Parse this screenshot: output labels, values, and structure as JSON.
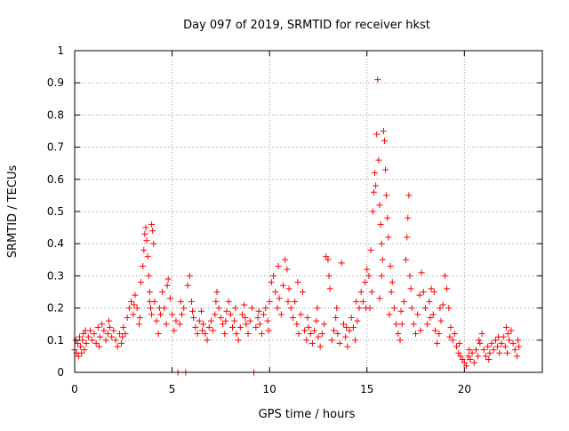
{
  "chart_data": {
    "type": "scatter",
    "title": "Day 097 of 2019, SRMTID for receiver hkst",
    "xlabel": "GPS time / hours",
    "ylabel": "SRMTID / TECUs",
    "xlim": [
      0,
      24
    ],
    "ylim": [
      0,
      1
    ],
    "x_ticks": [
      0,
      5,
      10,
      15,
      20
    ],
    "y_ticks": [
      0,
      0.1,
      0.2,
      0.3,
      0.4,
      0.5,
      0.6,
      0.7,
      0.8,
      0.9,
      1
    ],
    "x_tick_labels": [
      "0",
      "5",
      "10",
      "15",
      "20"
    ],
    "y_tick_labels": [
      "0",
      "0.1",
      "0.2",
      "0.3",
      "0.4",
      "0.5",
      "0.6",
      "0.7",
      "0.8",
      "0.9",
      "1"
    ],
    "grid": true,
    "marker": "+",
    "color": "#ff0000",
    "series": [
      {
        "name": "SRMTID",
        "points": [
          [
            0.0,
            0.07
          ],
          [
            0.1,
            0.06
          ],
          [
            0.15,
            0.09
          ],
          [
            0.2,
            0.05
          ],
          [
            0.25,
            0.11
          ],
          [
            0.3,
            0.08
          ],
          [
            0.35,
            0.06
          ],
          [
            0.4,
            0.1
          ],
          [
            0.45,
            0.12
          ],
          [
            0.5,
            0.07
          ],
          [
            0.6,
            0.09
          ],
          [
            0.7,
            0.11
          ],
          [
            0.8,
            0.13
          ],
          [
            0.9,
            0.1
          ],
          [
            1.0,
            0.12
          ],
          [
            1.1,
            0.09
          ],
          [
            1.2,
            0.14
          ],
          [
            1.3,
            0.11
          ],
          [
            1.4,
            0.15
          ],
          [
            1.5,
            0.13
          ],
          [
            1.6,
            0.1
          ],
          [
            1.7,
            0.12
          ],
          [
            1.8,
            0.14
          ],
          [
            1.9,
            0.11
          ],
          [
            2.0,
            0.13
          ],
          [
            2.1,
            0.1
          ],
          [
            2.2,
            0.08
          ],
          [
            2.3,
            0.12
          ],
          [
            2.4,
            0.09
          ],
          [
            2.5,
            0.14
          ],
          [
            2.6,
            0.12
          ],
          [
            2.7,
            0.17
          ],
          [
            2.8,
            0.2
          ],
          [
            2.9,
            0.22
          ],
          [
            3.0,
            0.18
          ],
          [
            3.1,
            0.24
          ],
          [
            3.2,
            0.2
          ],
          [
            3.3,
            0.15
          ],
          [
            3.4,
            0.28
          ],
          [
            3.5,
            0.33
          ],
          [
            3.55,
            0.38
          ],
          [
            3.6,
            0.43
          ],
          [
            3.65,
            0.45
          ],
          [
            3.7,
            0.41
          ],
          [
            3.75,
            0.36
          ],
          [
            3.8,
            0.3
          ],
          [
            3.85,
            0.25
          ],
          [
            3.9,
            0.2
          ],
          [
            3.95,
            0.46
          ],
          [
            4.0,
            0.44
          ],
          [
            4.05,
            0.4
          ],
          [
            4.1,
            0.22
          ],
          [
            4.2,
            0.16
          ],
          [
            4.3,
            0.12
          ],
          [
            4.4,
            0.18
          ],
          [
            4.5,
            0.25
          ],
          [
            4.6,
            0.2
          ],
          [
            4.7,
            0.15
          ],
          [
            4.8,
            0.29
          ],
          [
            4.9,
            0.23
          ],
          [
            5.0,
            0.18
          ],
          [
            5.1,
            0.13
          ],
          [
            5.2,
            0.16
          ],
          [
            5.3,
            0.0
          ],
          [
            5.4,
            0.15
          ],
          [
            5.5,
            0.18
          ],
          [
            5.6,
            0.2
          ],
          [
            5.7,
            0.0
          ],
          [
            5.8,
            0.27
          ],
          [
            5.9,
            0.3
          ],
          [
            6.0,
            0.22
          ],
          [
            6.1,
            0.17
          ],
          [
            6.2,
            0.14
          ],
          [
            6.3,
            0.12
          ],
          [
            6.4,
            0.16
          ],
          [
            6.5,
            0.19
          ],
          [
            6.6,
            0.15
          ],
          [
            6.7,
            0.12
          ],
          [
            6.8,
            0.1
          ],
          [
            6.9,
            0.14
          ],
          [
            7.0,
            0.16
          ],
          [
            7.1,
            0.13
          ],
          [
            7.2,
            0.18
          ],
          [
            7.3,
            0.25
          ],
          [
            7.4,
            0.2
          ],
          [
            7.5,
            0.17
          ],
          [
            7.6,
            0.15
          ],
          [
            7.7,
            0.12
          ],
          [
            7.8,
            0.19
          ],
          [
            7.9,
            0.22
          ],
          [
            8.0,
            0.18
          ],
          [
            8.1,
            0.14
          ],
          [
            8.2,
            0.16
          ],
          [
            8.3,
            0.12
          ],
          [
            8.4,
            0.1
          ],
          [
            8.5,
            0.14
          ],
          [
            8.6,
            0.18
          ],
          [
            8.7,
            0.21
          ],
          [
            8.8,
            0.15
          ],
          [
            8.9,
            0.12
          ],
          [
            9.0,
            0.16
          ],
          [
            9.1,
            0.2
          ],
          [
            9.2,
            0.0
          ],
          [
            9.3,
            0.14
          ],
          [
            9.4,
            0.17
          ],
          [
            9.5,
            0.15
          ],
          [
            9.6,
            0.12
          ],
          [
            9.7,
            0.18
          ],
          [
            9.8,
            0.2
          ],
          [
            9.9,
            0.16
          ],
          [
            10.0,
            0.22
          ],
          [
            10.1,
            0.28
          ],
          [
            10.2,
            0.3
          ],
          [
            10.3,
            0.25
          ],
          [
            10.4,
            0.2
          ],
          [
            10.5,
            0.23
          ],
          [
            10.6,
            0.18
          ],
          [
            10.7,
            0.27
          ],
          [
            10.8,
            0.35
          ],
          [
            10.9,
            0.32
          ],
          [
            11.0,
            0.26
          ],
          [
            11.1,
            0.2
          ],
          [
            11.2,
            0.17
          ],
          [
            11.3,
            0.22
          ],
          [
            11.4,
            0.15
          ],
          [
            11.5,
            0.12
          ],
          [
            11.6,
            0.18
          ],
          [
            11.7,
            0.25
          ],
          [
            11.8,
            0.13
          ],
          [
            11.9,
            0.1
          ],
          [
            12.0,
            0.14
          ],
          [
            12.1,
            0.12
          ],
          [
            12.2,
            0.09
          ],
          [
            12.3,
            0.13
          ],
          [
            12.4,
            0.16
          ],
          [
            12.5,
            0.11
          ],
          [
            12.6,
            0.08
          ],
          [
            12.7,
            0.12
          ],
          [
            12.8,
            0.15
          ],
          [
            12.9,
            0.36
          ],
          [
            13.0,
            0.35
          ],
          [
            13.05,
            0.3
          ],
          [
            13.1,
            0.26
          ],
          [
            13.2,
            0.1
          ],
          [
            13.3,
            0.13
          ],
          [
            13.4,
            0.17
          ],
          [
            13.5,
            0.12
          ],
          [
            13.6,
            0.09
          ],
          [
            13.7,
            0.34
          ],
          [
            13.8,
            0.15
          ],
          [
            13.9,
            0.11
          ],
          [
            14.0,
            0.08
          ],
          [
            14.1,
            0.13
          ],
          [
            14.2,
            0.17
          ],
          [
            14.3,
            0.14
          ],
          [
            14.4,
            0.1
          ],
          [
            14.5,
            0.16
          ],
          [
            14.6,
            0.2
          ],
          [
            14.7,
            0.25
          ],
          [
            14.8,
            0.22
          ],
          [
            14.9,
            0.28
          ],
          [
            15.0,
            0.32
          ],
          [
            15.1,
            0.3
          ],
          [
            15.2,
            0.38
          ],
          [
            15.3,
            0.5
          ],
          [
            15.35,
            0.56
          ],
          [
            15.4,
            0.62
          ],
          [
            15.45,
            0.58
          ],
          [
            15.5,
            0.74
          ],
          [
            15.55,
            0.91
          ],
          [
            15.6,
            0.66
          ],
          [
            15.65,
            0.52
          ],
          [
            15.7,
            0.46
          ],
          [
            15.75,
            0.4
          ],
          [
            15.8,
            0.35
          ],
          [
            15.85,
            0.75
          ],
          [
            15.9,
            0.72
          ],
          [
            15.95,
            0.63
          ],
          [
            16.0,
            0.55
          ],
          [
            16.05,
            0.48
          ],
          [
            16.1,
            0.42
          ],
          [
            16.2,
            0.33
          ],
          [
            16.3,
            0.28
          ],
          [
            16.4,
            0.2
          ],
          [
            16.5,
            0.15
          ],
          [
            16.6,
            0.12
          ],
          [
            16.7,
            0.1
          ],
          [
            16.8,
            0.15
          ],
          [
            16.9,
            0.22
          ],
          [
            17.0,
            0.35
          ],
          [
            17.05,
            0.42
          ],
          [
            17.1,
            0.48
          ],
          [
            17.15,
            0.55
          ],
          [
            17.2,
            0.3
          ],
          [
            17.3,
            0.2
          ],
          [
            17.4,
            0.15
          ],
          [
            17.5,
            0.12
          ],
          [
            17.6,
            0.18
          ],
          [
            17.7,
            0.24
          ],
          [
            17.8,
            0.31
          ],
          [
            17.9,
            0.25
          ],
          [
            18.0,
            0.2
          ],
          [
            18.1,
            0.15
          ],
          [
            18.2,
            0.22
          ],
          [
            18.3,
            0.26
          ],
          [
            18.4,
            0.18
          ],
          [
            18.5,
            0.13
          ],
          [
            18.6,
            0.09
          ],
          [
            18.7,
            0.12
          ],
          [
            18.8,
            0.16
          ],
          [
            18.9,
            0.21
          ],
          [
            19.0,
            0.3
          ],
          [
            19.1,
            0.26
          ],
          [
            19.2,
            0.2
          ],
          [
            19.3,
            0.14
          ],
          [
            19.4,
            0.1
          ],
          [
            19.5,
            0.12
          ],
          [
            19.6,
            0.08
          ],
          [
            19.7,
            0.06
          ],
          [
            19.8,
            0.05
          ],
          [
            19.9,
            0.04
          ],
          [
            20.0,
            0.03
          ],
          [
            20.1,
            0.02
          ],
          [
            20.2,
            0.05
          ],
          [
            20.3,
            0.04
          ],
          [
            20.4,
            0.06
          ],
          [
            20.5,
            0.03
          ],
          [
            20.6,
            0.07
          ],
          [
            20.7,
            0.05
          ],
          [
            20.8,
            0.09
          ],
          [
            20.9,
            0.12
          ],
          [
            21.0,
            0.07
          ],
          [
            21.1,
            0.05
          ],
          [
            21.2,
            0.08
          ],
          [
            21.3,
            0.06
          ],
          [
            21.4,
            0.09
          ],
          [
            21.5,
            0.07
          ],
          [
            21.6,
            0.1
          ],
          [
            21.7,
            0.08
          ],
          [
            21.8,
            0.06
          ],
          [
            21.9,
            0.09
          ],
          [
            22.0,
            0.11
          ],
          [
            22.1,
            0.08
          ],
          [
            22.2,
            0.06
          ],
          [
            22.3,
            0.1
          ],
          [
            22.4,
            0.13
          ],
          [
            22.5,
            0.09
          ],
          [
            22.6,
            0.07
          ],
          [
            22.7,
            0.05
          ],
          [
            22.8,
            0.08
          ],
          [
            0.05,
            0.1
          ],
          [
            0.55,
            0.13
          ],
          [
            1.25,
            0.08
          ],
          [
            1.75,
            0.16
          ],
          [
            2.45,
            0.11
          ],
          [
            3.05,
            0.21
          ],
          [
            3.35,
            0.17
          ],
          [
            4.35,
            0.2
          ],
          [
            4.75,
            0.27
          ],
          [
            5.45,
            0.22
          ],
          [
            6.05,
            0.19
          ],
          [
            6.55,
            0.13
          ],
          [
            7.25,
            0.22
          ],
          [
            7.75,
            0.16
          ],
          [
            8.25,
            0.2
          ],
          [
            8.75,
            0.17
          ],
          [
            9.45,
            0.19
          ],
          [
            9.95,
            0.13
          ],
          [
            10.45,
            0.33
          ],
          [
            10.95,
            0.22
          ],
          [
            11.45,
            0.28
          ],
          [
            11.95,
            0.17
          ],
          [
            12.45,
            0.2
          ],
          [
            13.45,
            0.2
          ],
          [
            13.95,
            0.14
          ],
          [
            14.45,
            0.22
          ],
          [
            14.95,
            0.2
          ],
          [
            15.25,
            0.25
          ],
          [
            15.75,
            0.3
          ],
          [
            16.25,
            0.25
          ],
          [
            16.75,
            0.19
          ],
          [
            17.25,
            0.26
          ],
          [
            17.75,
            0.13
          ],
          [
            18.25,
            0.17
          ],
          [
            18.75,
            0.2
          ],
          [
            19.25,
            0.11
          ],
          [
            19.75,
            0.09
          ],
          [
            20.25,
            0.07
          ],
          [
            20.75,
            0.1
          ],
          [
            21.25,
            0.04
          ],
          [
            21.75,
            0.11
          ],
          [
            22.25,
            0.12
          ],
          [
            22.75,
            0.1
          ],
          [
            22.15,
            0.14
          ],
          [
            3.85,
            0.22
          ],
          [
            3.95,
            0.18
          ],
          [
            15.15,
            0.2
          ],
          [
            15.65,
            0.23
          ],
          [
            16.15,
            0.18
          ],
          [
            18.45,
            0.25
          ]
        ]
      }
    ]
  }
}
